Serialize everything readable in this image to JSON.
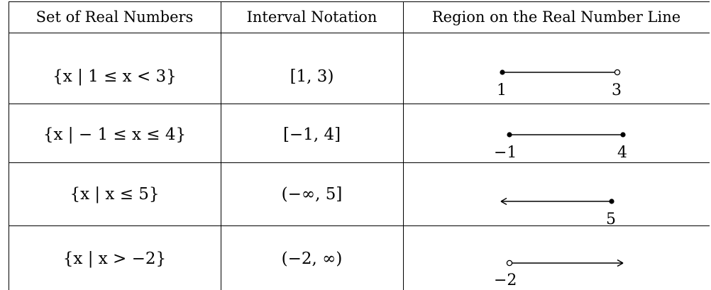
{
  "table": {
    "headers": {
      "set": "Set of Real Numbers",
      "interval": "Interval Notation",
      "region": "Region on the Real Number Line"
    },
    "rows": [
      {
        "set": "{x | 1 ≤ x < 3}",
        "interval": "[1, 3)",
        "region": {
          "left_endpoint": "closed",
          "right_endpoint": "open",
          "left_label": "1",
          "right_label": "3"
        }
      },
      {
        "set": "{x | − 1 ≤ x ≤ 4}",
        "interval": "[−1, 4]",
        "region": {
          "left_endpoint": "closed",
          "right_endpoint": "closed",
          "left_label": "−1",
          "right_label": "4"
        }
      },
      {
        "set": "{x | x ≤ 5}",
        "interval": "(−∞, 5]",
        "region": {
          "left_endpoint": "arrow",
          "right_endpoint": "closed",
          "left_label": "",
          "right_label": "5"
        }
      },
      {
        "set": "{x | x > −2}",
        "interval": "(−2, ∞)",
        "region": {
          "left_endpoint": "open",
          "right_endpoint": "arrow",
          "left_label": "−2",
          "right_label": ""
        }
      }
    ]
  }
}
